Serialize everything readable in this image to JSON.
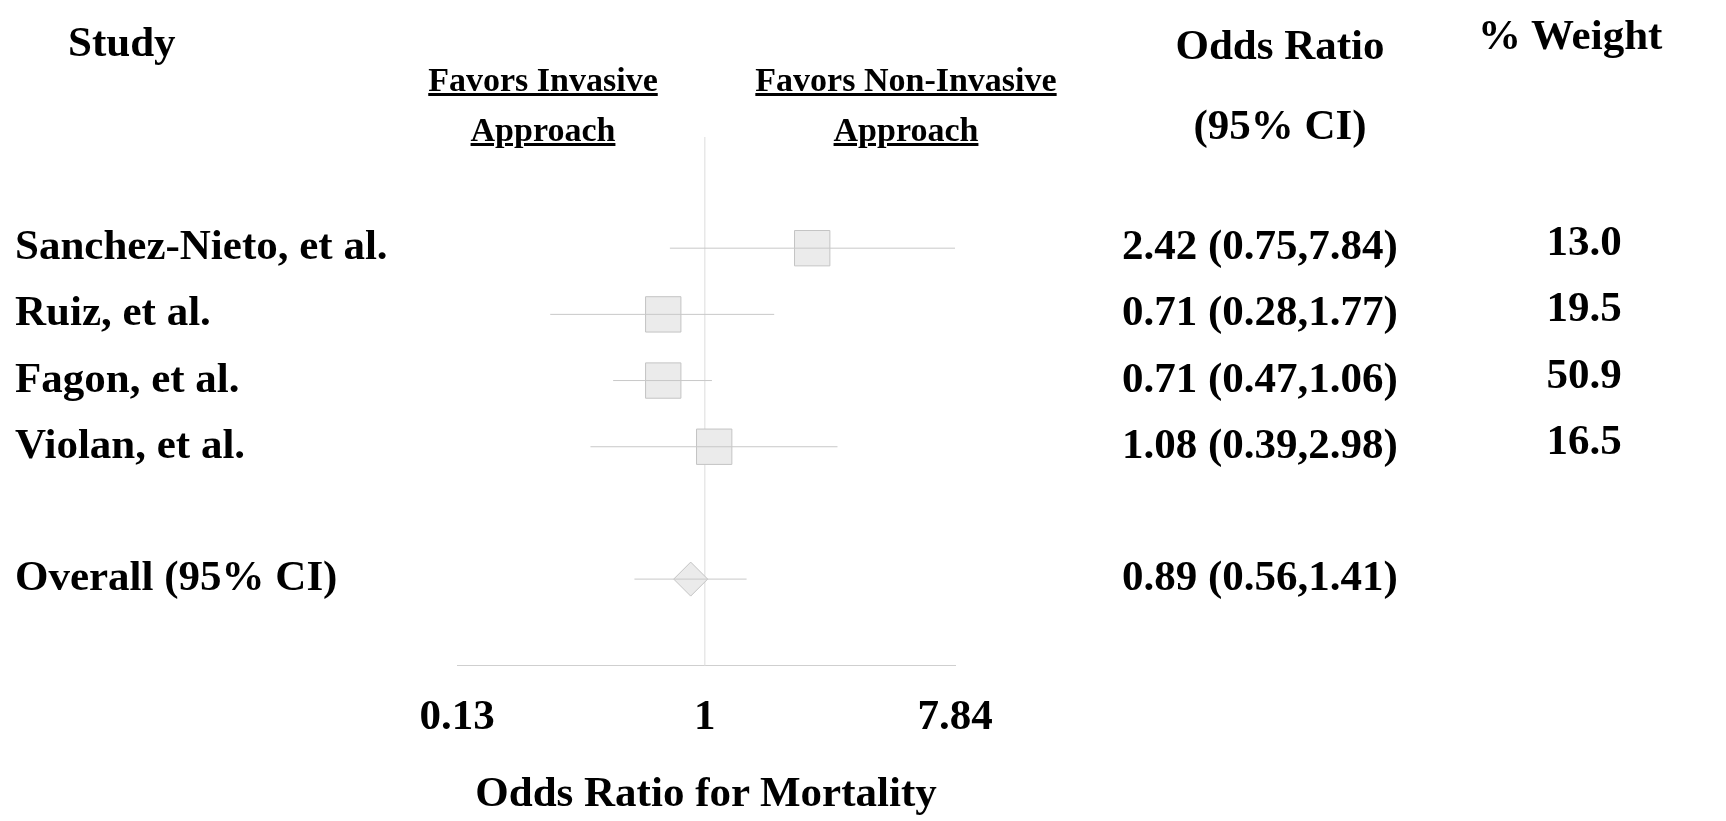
{
  "chart_data": {
    "type": "scatter",
    "orientation": "horizontal",
    "xlabel": "Odds Ratio for Mortality",
    "annotations": [
      "Study",
      "Favors Invasive Approach",
      "Favors Non-Invasive Approach",
      "Odds Ratio (95% CI)",
      "% Weight",
      "13.0",
      "19.5",
      "50.9",
      "16.5",
      "0.89 (0.56,1.41)"
    ],
    "categories": [
      "Sanchez-Nieto, et al.",
      "Ruiz, et al.",
      "Fagon, et al.",
      "Violan, et al.",
      null,
      "Overall (95% CI)"
    ],
    "series": [
      {
        "color": "#ebebeb",
        "marker": "square",
        "values": [
          2.42,
          0.71,
          0.71,
          1.08,
          null,
          null
        ],
        "errors": [
          [
            0.75,
            7.84
          ],
          [
            0.28,
            1.77
          ],
          [
            0.47,
            1.06
          ],
          [
            0.39,
            2.98
          ],
          null,
          null
        ],
        "value_labels": [
          "2.42 (0.75,7.84)",
          "0.71 (0.28,1.77)",
          "0.71 (0.47,1.06)",
          "1.08 (0.39,2.98)",
          null,
          null
        ]
      },
      {
        "color": "#ebebeb",
        "marker": "diamond",
        "values": [
          null,
          null,
          null,
          null,
          null,
          0.89
        ],
        "errors": [
          null,
          null,
          null,
          null,
          null,
          [
            0.56,
            1.41
          ]
        ]
      }
    ],
    "log": "x",
    "xlim": [
      0.13,
      7.84
    ],
    "xticks": [
      0.13,
      1,
      7.84
    ],
    "ref_lines": [
      {
        "axis": "x",
        "value": 1,
        "color": "#dcdcdc"
      }
    ],
    "grid": false,
    "legend": false
  }
}
